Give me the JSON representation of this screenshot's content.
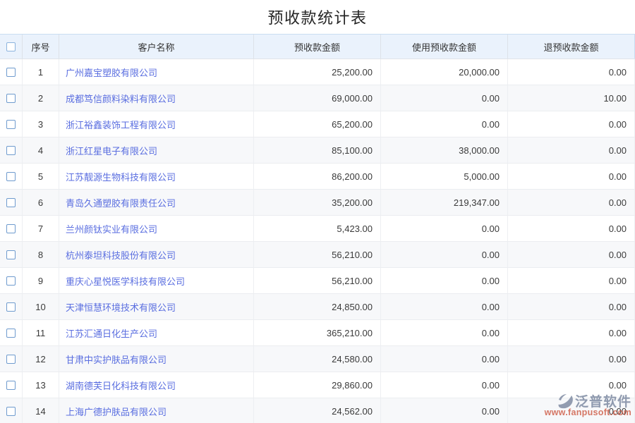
{
  "page": {
    "title": "预收款统计表"
  },
  "table": {
    "columns": {
      "index": "序号",
      "name": "客户名称",
      "advance": "预收款金额",
      "used": "使用预收款金额",
      "refund": "退预收款金额"
    },
    "rows": [
      {
        "index": "1",
        "name": "广州嘉宝塑胶有限公司",
        "advance": "25,200.00",
        "used": "20,000.00",
        "refund": "0.00"
      },
      {
        "index": "2",
        "name": "成都笃信颜料染料有限公司",
        "advance": "69,000.00",
        "used": "0.00",
        "refund": "10.00"
      },
      {
        "index": "3",
        "name": "浙江裕鑫装饰工程有限公司",
        "advance": "65,200.00",
        "used": "0.00",
        "refund": "0.00"
      },
      {
        "index": "4",
        "name": "浙江红星电子有限公司",
        "advance": "85,100.00",
        "used": "38,000.00",
        "refund": "0.00"
      },
      {
        "index": "5",
        "name": "江苏靓源生物科技有限公司",
        "advance": "86,200.00",
        "used": "5,000.00",
        "refund": "0.00"
      },
      {
        "index": "6",
        "name": "青岛久通塑胶有限责任公司",
        "advance": "35,200.00",
        "used": "219,347.00",
        "refund": "0.00"
      },
      {
        "index": "7",
        "name": "兰州颜钛实业有限公司",
        "advance": "5,423.00",
        "used": "0.00",
        "refund": "0.00"
      },
      {
        "index": "8",
        "name": "杭州泰坦科技股份有限公司",
        "advance": "56,210.00",
        "used": "0.00",
        "refund": "0.00"
      },
      {
        "index": "9",
        "name": "重庆心星悦医学科技有限公司",
        "advance": "56,210.00",
        "used": "0.00",
        "refund": "0.00"
      },
      {
        "index": "10",
        "name": "天津恒慧环境技术有限公司",
        "advance": "24,850.00",
        "used": "0.00",
        "refund": "0.00"
      },
      {
        "index": "11",
        "name": "江苏汇通日化生产公司",
        "advance": "365,210.00",
        "used": "0.00",
        "refund": "0.00"
      },
      {
        "index": "12",
        "name": "甘肃中实护肤品有限公司",
        "advance": "24,580.00",
        "used": "0.00",
        "refund": "0.00"
      },
      {
        "index": "13",
        "name": "湖南德芙日化科技有限公司",
        "advance": "29,860.00",
        "used": "0.00",
        "refund": "0.00"
      },
      {
        "index": "14",
        "name": "上海广德护肤品有限公司",
        "advance": "24,562.00",
        "used": "0.00",
        "refund": "0.00"
      }
    ]
  },
  "watermark": {
    "brand": "泛普软件",
    "url": "www.fanpusoft.com",
    "logo_icon": "fanpu-logo"
  },
  "colors": {
    "link": "#5a6ee0",
    "header_bg": "#eaf2fc",
    "header_top_border": "#c9ddf1",
    "row_alt_bg": "#f7f8fa",
    "checkbox_border": "#6f9bce",
    "watermark_brand": "#8793a9",
    "watermark_url": "#c9482f",
    "title_text": "#262626"
  }
}
